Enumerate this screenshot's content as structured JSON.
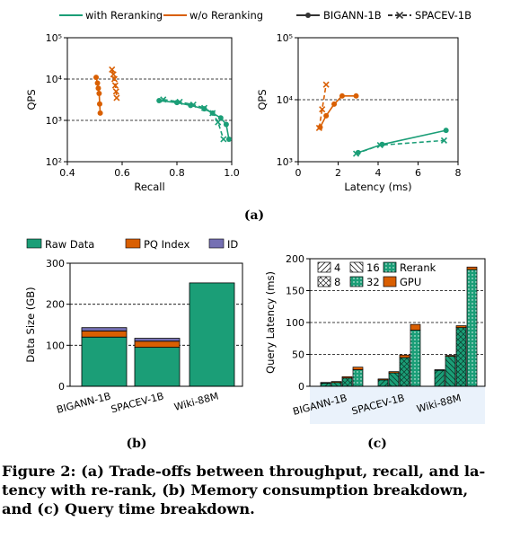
{
  "colors": {
    "green": "#1b9e77",
    "orange": "#d95f02",
    "purple": "#7570b3"
  },
  "legend_top": {
    "with_rerank": "with Reranking",
    "without_rerank": "w/o Reranking",
    "bigann": "BIGANN-1B",
    "spacev": "SPACEV-1B"
  },
  "labels": {
    "a": "(a)",
    "b": "(b)",
    "c": "(c)"
  },
  "caption": {
    "line1": "Figure 2: (a) Trade-offs between throughput, recall, and la-",
    "line2": "tency with re-rank, (b) Memory consumption breakdown,",
    "line3": "and (c) Query time breakdown."
  },
  "chart_data": [
    {
      "id": "a-left",
      "type": "line",
      "xlabel": "Recall",
      "ylabel": "QPS",
      "xlim": [
        0.4,
        1.0
      ],
      "xticks": [
        "0.4",
        "0.6",
        "0.8",
        "1.0"
      ],
      "ylim_log10": [
        2,
        5
      ],
      "yticks": [
        "10²",
        "10³",
        "10⁴",
        "10⁵"
      ],
      "grid": "horizontal dashed at 10³ and 10⁴",
      "series": [
        {
          "name": "with Reranking",
          "dataset": "BIGANN-1B",
          "x": [
            0.735,
            0.8,
            0.85,
            0.9,
            0.93,
            0.96,
            0.98,
            0.99
          ],
          "y": [
            3000,
            2700,
            2300,
            1900,
            1500,
            1150,
            800,
            350
          ]
        },
        {
          "name": "with Reranking",
          "dataset": "SPACEV-1B",
          "x": [
            0.75,
            0.81,
            0.86,
            0.9,
            0.93,
            0.95,
            0.97
          ],
          "y": [
            3200,
            2800,
            2400,
            2000,
            1500,
            900,
            350
          ]
        },
        {
          "name": "w/o Reranking",
          "dataset": "BIGANN-1B",
          "x": [
            0.505,
            0.51,
            0.513,
            0.516,
            0.518,
            0.52
          ],
          "y": [
            11000,
            8000,
            6000,
            4500,
            2500,
            1500
          ]
        },
        {
          "name": "w/o Reranking",
          "dataset": "SPACEV-1B",
          "x": [
            0.563,
            0.568,
            0.572,
            0.575,
            0.578,
            0.58
          ],
          "y": [
            17000,
            13000,
            10000,
            7000,
            5000,
            3500
          ]
        }
      ]
    },
    {
      "id": "a-right",
      "type": "line",
      "xlabel": "Latency (ms)",
      "ylabel": "QPS",
      "xlim": [
        0,
        8
      ],
      "xticks": [
        "0",
        "2",
        "4",
        "6",
        "8"
      ],
      "ylim_log10": [
        3,
        5
      ],
      "yticks": [
        "10³",
        "10⁴",
        "10⁵"
      ],
      "grid": "horizontal dashed at 10⁴",
      "series": [
        {
          "name": "with Reranking",
          "dataset": "BIGANN-1B",
          "x": [
            3.0,
            4.2,
            7.4
          ],
          "y": [
            1400,
            1900,
            3200
          ]
        },
        {
          "name": "with Reranking",
          "dataset": "SPACEV-1B",
          "x": [
            2.9,
            4.1,
            7.3
          ],
          "y": [
            1350,
            1850,
            2200
          ]
        },
        {
          "name": "w/o Reranking",
          "dataset": "BIGANN-1B",
          "x": [
            1.1,
            1.4,
            1.8,
            2.2,
            2.9
          ],
          "y": [
            3600,
            5500,
            8500,
            11500,
            11500
          ]
        },
        {
          "name": "w/o Reranking",
          "dataset": "SPACEV-1B",
          "x": [
            1.05,
            1.2,
            1.4
          ],
          "y": [
            3500,
            7000,
            17500
          ]
        }
      ]
    },
    {
      "id": "b",
      "type": "bar",
      "stacked": true,
      "ylabel": "Data Size (GB)",
      "ylim": [
        0,
        300
      ],
      "yticks": [
        "0",
        "100",
        "200",
        "300"
      ],
      "categories": [
        "BIGANN-1B",
        "SPACEV-1B",
        "Wiki-88M"
      ],
      "series": [
        {
          "name": "Raw Data",
          "values": [
            120,
            95,
            252
          ]
        },
        {
          "name": "PQ Index",
          "values": [
            15,
            15,
            0
          ]
        },
        {
          "name": "ID",
          "values": [
            8,
            7,
            0
          ]
        }
      ]
    },
    {
      "id": "c",
      "type": "bar",
      "stacked": true,
      "ylabel": "Query Latency (ms)",
      "ylim": [
        0,
        200
      ],
      "yticks": [
        "0",
        "50",
        "100",
        "150",
        "200"
      ],
      "categories": [
        "BIGANN-1B",
        "SPACEV-1B",
        "Wiki-88M"
      ],
      "group_legend": [
        "4",
        "16",
        "8",
        "32"
      ],
      "stack_legend": [
        "Rerank",
        "GPU"
      ],
      "groups": [
        {
          "category": "BIGANN-1B",
          "rerank": [
            5,
            6,
            13,
            26
          ],
          "gpu": [
            1,
            1.5,
            2,
            4
          ]
        },
        {
          "category": "SPACEV-1B",
          "rerank": [
            10,
            21,
            45,
            88
          ],
          "gpu": [
            1.5,
            2,
            4,
            9
          ]
        },
        {
          "category": "Wiki-88M",
          "rerank": [
            25,
            47,
            92,
            183
          ],
          "gpu": [
            1,
            1.5,
            3,
            4
          ]
        }
      ]
    }
  ]
}
